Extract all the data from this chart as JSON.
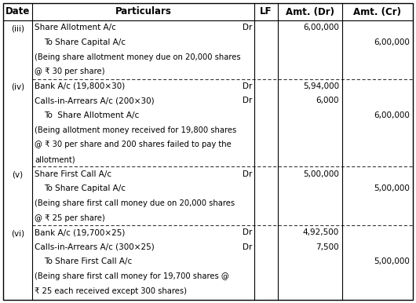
{
  "header_font_size": 8.5,
  "body_font_size": 7.5,
  "narration_font_size": 7.2,
  "bg_color": "#ffffff",
  "rows": [
    {
      "date": "(iii)",
      "particulars": [
        {
          "text": "Share Allotment A/c",
          "indent": 0,
          "dr": true,
          "narration": false
        },
        {
          "text": "To Share Capital A/c",
          "indent": 1,
          "dr": false,
          "narration": false
        },
        {
          "text": "(Being share allotment money due on 20,000 shares",
          "indent": 0,
          "dr": false,
          "narration": true
        },
        {
          "text": "@ ₹ 30 per share)",
          "indent": 0,
          "dr": false,
          "narration": true
        }
      ],
      "amounts_dr": [
        "6,00,000",
        "",
        "",
        ""
      ],
      "amounts_cr": [
        "",
        "6,00,000",
        "",
        ""
      ]
    },
    {
      "date": "(iv)",
      "particulars": [
        {
          "text": "Bank A/c (19,800×30)",
          "indent": 0,
          "dr": true,
          "narration": false
        },
        {
          "text": "Calls-in-Arrears A/c (200×30)",
          "indent": 0,
          "dr": true,
          "narration": false
        },
        {
          "text": "To  Share Allotment A/c",
          "indent": 1,
          "dr": false,
          "narration": false
        },
        {
          "text": "(Being allotment money received for 19,800 shares",
          "indent": 0,
          "dr": false,
          "narration": true
        },
        {
          "text": "@ ₹ 30 per share and 200 shares failed to pay the",
          "indent": 0,
          "dr": false,
          "narration": true
        },
        {
          "text": "allotment)",
          "indent": 0,
          "dr": false,
          "narration": true
        }
      ],
      "amounts_dr": [
        "5,94,000",
        "6,000",
        "",
        "",
        "",
        ""
      ],
      "amounts_cr": [
        "",
        "",
        "6,00,000",
        "",
        "",
        ""
      ]
    },
    {
      "date": "(v)",
      "particulars": [
        {
          "text": "Share First Call A/c",
          "indent": 0,
          "dr": true,
          "narration": false
        },
        {
          "text": "To Share Capital A/c",
          "indent": 1,
          "dr": false,
          "narration": false
        },
        {
          "text": "(Being share first call money due on 20,000 shares",
          "indent": 0,
          "dr": false,
          "narration": true
        },
        {
          "text": "@ ₹ 25 per share)",
          "indent": 0,
          "dr": false,
          "narration": true
        }
      ],
      "amounts_dr": [
        "5,00,000",
        "",
        "",
        ""
      ],
      "amounts_cr": [
        "",
        "5,00,000",
        "",
        ""
      ]
    },
    {
      "date": "(vi)",
      "particulars": [
        {
          "text": "Bank A/c (19,700×25)",
          "indent": 0,
          "dr": true,
          "narration": false
        },
        {
          "text": "Calls-in-Arrears A/c (300×25)",
          "indent": 0,
          "dr": true,
          "narration": false
        },
        {
          "text": "To Share First Call A/c",
          "indent": 1,
          "dr": false,
          "narration": false
        },
        {
          "text": "(Being share first call money for 19,700 shares @",
          "indent": 0,
          "dr": false,
          "narration": true
        },
        {
          "text": "₹ 25 each received except 300 shares)",
          "indent": 0,
          "dr": false,
          "narration": true
        }
      ],
      "amounts_dr": [
        "4,92,500",
        "7,500",
        "",
        "",
        ""
      ],
      "amounts_cr": [
        "",
        "",
        "5,00,000",
        "",
        ""
      ]
    }
  ]
}
